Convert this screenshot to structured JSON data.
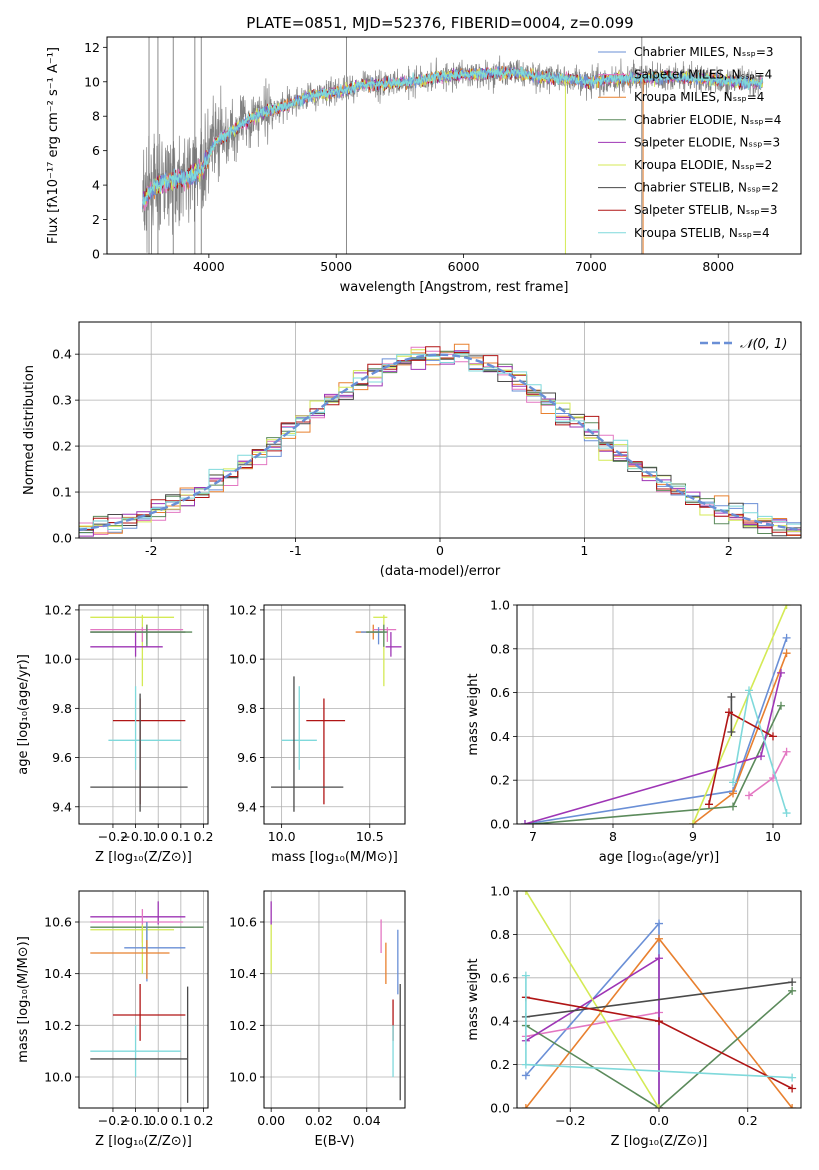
{
  "colors": {
    "Chabrier MILES": "#6a8fd6",
    "Salpeter MILES": "#e377c2",
    "Kroupa MILES": "#e8802f",
    "Chabrier ELODIE": "#5b8a5b",
    "Salpeter ELODIE": "#9e35b5",
    "Kroupa ELODIE": "#d4ea55",
    "Chabrier STELIB": "#4a4a4a",
    "Salpeter STELIB": "#b01515",
    "Kroupa STELIB": "#7fd9db",
    "normal_curve": "#6a8fd6"
  },
  "chart_data": [
    {
      "id": "spectrum",
      "type": "line",
      "title": "PLATE=0851, MJD=52376, FIBERID=0004, z=0.099",
      "xlabel": "wavelength [Angstrom, rest frame]",
      "ylabel": "Flux [fλ10⁻¹⁷ erg cm⁻² s⁻¹ A⁻¹]",
      "xlim": [
        3200,
        8650
      ],
      "ylim": [
        0,
        12.6
      ],
      "xticks": [
        4000,
        5000,
        6000,
        7000,
        8000
      ],
      "yticks": [
        0,
        2,
        4,
        6,
        8,
        10,
        12
      ],
      "legend_position": "top-right",
      "data_color": "#808080",
      "continuum": {
        "x": [
          3480,
          3560,
          3650,
          3750,
          3850,
          3950,
          4050,
          4150,
          4250,
          4400,
          4600,
          4800,
          5000,
          5200,
          5400,
          5600,
          5800,
          6000,
          6200,
          6400,
          6600,
          6800,
          7000,
          7200,
          7400,
          7600,
          7800,
          8000,
          8200,
          8350
        ],
        "y": [
          3.0,
          3.8,
          4.2,
          4.3,
          4.5,
          5.0,
          6.5,
          7.0,
          7.5,
          8.2,
          8.6,
          9.2,
          9.4,
          9.8,
          9.9,
          10.0,
          10.3,
          10.4,
          10.5,
          10.5,
          10.3,
          10.2,
          10.0,
          10.2,
          10.2,
          10.3,
          10.2,
          10.1,
          10.0,
          9.9
        ]
      },
      "legend": [
        "Chabrier MILES, Nₛₛₚ=3",
        "Salpeter MILES, Nₛₛₚ=4",
        "Kroupa MILES, Nₛₛₚ=4",
        "Chabrier ELODIE, Nₛₛₚ=4",
        "Salpeter ELODIE, Nₛₛₚ=3",
        "Kroupa ELODIE, Nₛₛₚ=2",
        "Chabrier STELIB, Nₛₛₚ=2",
        "Salpeter STELIB, Nₛₛₚ=3",
        "Kroupa STELIB, Nₛₛₚ=4"
      ]
    },
    {
      "id": "residual_hist",
      "type": "histogram",
      "xlabel": "(data-model)/error",
      "ylabel": "Normed distribution",
      "xlim": [
        -2.5,
        2.5
      ],
      "ylim": [
        0,
        0.47
      ],
      "xticks": [
        -2,
        -1,
        0,
        1,
        2
      ],
      "yticks": [
        0.0,
        0.1,
        0.2,
        0.3,
        0.4
      ],
      "grid": true,
      "legend": [
        "𝒩(0, 1)"
      ],
      "legend_position": "top-right",
      "bin_width": 0.1
    },
    {
      "id": "z_age",
      "type": "scatter",
      "xlabel": "Z [log₁₀(Z/Z⊙)]",
      "ylabel": "age  [log₁₀(age/yr)]",
      "xlim": [
        -0.35,
        0.22
      ],
      "ylim": [
        9.33,
        10.22
      ],
      "xticks": [
        -0.2,
        -0.1,
        0.0,
        0.1,
        0.2
      ],
      "xtick_labels": [
        "−0.2",
        "−0.1",
        "0.0",
        "0.1",
        "0.2"
      ],
      "yticks": [
        9.4,
        9.6,
        9.8,
        10.0,
        10.2
      ],
      "grid": true,
      "points": [
        {
          "series": "Kroupa ELODIE",
          "x": -0.07,
          "xerr": [
            0.23,
            0.14
          ],
          "y": 10.17,
          "yerr": [
            0.28,
            0.01
          ]
        },
        {
          "series": "Kroupa MILES",
          "x": -0.05,
          "xerr": [
            0.25,
            0.17
          ],
          "y": 10.11,
          "yerr": [
            0.03,
            0.03
          ]
        },
        {
          "series": "Salpeter MILES",
          "x": -0.07,
          "xerr": [
            0.23,
            0.18
          ],
          "y": 10.12,
          "yerr": [
            0.05,
            0.01
          ]
        },
        {
          "series": "Chabrier MILES",
          "x": -0.05,
          "xerr": [
            0.25,
            0.17
          ],
          "y": 10.11,
          "yerr": [
            0.05,
            0.02
          ]
        },
        {
          "series": "Chabrier ELODIE",
          "x": -0.05,
          "xerr": [
            0.25,
            0.2
          ],
          "y": 10.11,
          "yerr": [
            0.06,
            0.03
          ]
        },
        {
          "series": "Salpeter ELODIE",
          "x": -0.1,
          "xerr": [
            0.2,
            0.12
          ],
          "y": 10.05,
          "yerr": [
            0.04,
            0.06
          ]
        },
        {
          "series": "Salpeter STELIB",
          "x": -0.08,
          "xerr": [
            0.12,
            0.2
          ],
          "y": 9.75,
          "yerr": [
            0.34,
            0.09
          ]
        },
        {
          "series": "Kroupa STELIB",
          "x": -0.1,
          "xerr": [
            0.12,
            0.2
          ],
          "y": 9.67,
          "yerr": [
            0.12,
            0.22
          ]
        },
        {
          "series": "Chabrier STELIB",
          "x": -0.08,
          "xerr": [
            0.22,
            0.21
          ],
          "y": 9.48,
          "yerr": [
            0.1,
            0.38
          ]
        }
      ]
    },
    {
      "id": "mass_age",
      "type": "scatter",
      "xlabel": "mass [log₁₀(M/M⊙)]",
      "ylabel": "",
      "xlim": [
        9.9,
        10.7
      ],
      "ylim": [
        9.33,
        10.22
      ],
      "xticks": [
        10.0,
        10.5
      ],
      "xtick_labels": [
        "10.0",
        "10.5"
      ],
      "yticks": [
        9.4,
        9.6,
        9.8,
        10.0,
        10.2
      ],
      "grid": true,
      "points": [
        {
          "series": "Kroupa ELODIE",
          "x": 10.58,
          "xerr": [
            0.06,
            0.02
          ],
          "y": 10.17,
          "yerr": [
            0.28,
            0.01
          ]
        },
        {
          "series": "Kroupa MILES",
          "x": 10.52,
          "xerr": [
            0.1,
            0.05
          ],
          "y": 10.11,
          "yerr": [
            0.03,
            0.03
          ]
        },
        {
          "series": "Salpeter MILES",
          "x": 10.6,
          "xerr": [
            0.08,
            0.05
          ],
          "y": 10.12,
          "yerr": [
            0.05,
            0.01
          ]
        },
        {
          "series": "Chabrier MILES",
          "x": 10.55,
          "xerr": [
            0.1,
            0.04
          ],
          "y": 10.11,
          "yerr": [
            0.05,
            0.02
          ]
        },
        {
          "series": "Chabrier ELODIE",
          "x": 10.58,
          "xerr": [
            0.1,
            0.02
          ],
          "y": 10.11,
          "yerr": [
            0.06,
            0.03
          ]
        },
        {
          "series": "Salpeter ELODIE",
          "x": 10.62,
          "xerr": [
            0.03,
            0.06
          ],
          "y": 10.05,
          "yerr": [
            0.04,
            0.06
          ]
        },
        {
          "series": "Salpeter STELIB",
          "x": 10.24,
          "xerr": [
            0.1,
            0.12
          ],
          "y": 9.75,
          "yerr": [
            0.34,
            0.09
          ]
        },
        {
          "series": "Kroupa STELIB",
          "x": 10.1,
          "xerr": [
            0.1,
            0.1
          ],
          "y": 9.67,
          "yerr": [
            0.12,
            0.22
          ]
        },
        {
          "series": "Chabrier STELIB",
          "x": 10.07,
          "xerr": [
            0.13,
            0.28
          ],
          "y": 9.48,
          "yerr": [
            0.1,
            0.45
          ]
        }
      ]
    },
    {
      "id": "age_weight",
      "type": "line",
      "xlabel": "age  [log₁₀(age/yr)]",
      "ylabel": "mass weight",
      "xlim": [
        6.8,
        10.35
      ],
      "ylim": [
        0,
        1
      ],
      "xticks": [
        7,
        8,
        9,
        10
      ],
      "yticks": [
        0.0,
        0.2,
        0.4,
        0.6,
        0.8,
        1.0
      ],
      "grid": true,
      "series": [
        {
          "name": "Chabrier MILES",
          "x": [
            6.9,
            9.5,
            10.17
          ],
          "y": [
            0.0,
            0.15,
            0.85
          ]
        },
        {
          "name": "Salpeter MILES",
          "x": [
            9.7,
            10.0,
            10.17
          ],
          "y": [
            0.13,
            0.21,
            0.33
          ]
        },
        {
          "name": "Kroupa MILES",
          "x": [
            9.0,
            9.5,
            10.17
          ],
          "y": [
            0.0,
            0.14,
            0.78
          ]
        },
        {
          "name": "Chabrier ELODIE",
          "x": [
            7.0,
            9.5,
            10.1
          ],
          "y": [
            0.0,
            0.08,
            0.54
          ]
        },
        {
          "name": "Salpeter ELODIE",
          "x": [
            6.9,
            9.85,
            10.1
          ],
          "y": [
            0.0,
            0.31,
            0.69
          ]
        },
        {
          "name": "Kroupa ELODIE",
          "x": [
            9.0,
            10.17
          ],
          "y": [
            0.0,
            1.0
          ]
        },
        {
          "name": "Chabrier STELIB",
          "x": [
            9.48,
            9.48
          ],
          "y": [
            0.42,
            0.58
          ]
        },
        {
          "name": "Salpeter STELIB",
          "x": [
            9.2,
            9.45,
            10.0
          ],
          "y": [
            0.09,
            0.51,
            0.4
          ]
        },
        {
          "name": "Kroupa STELIB",
          "x": [
            9.5,
            9.7,
            10.17
          ],
          "y": [
            0.19,
            0.61,
            0.05
          ]
        }
      ]
    },
    {
      "id": "z_mass",
      "type": "scatter",
      "xlabel": "Z [log₁₀(Z/Z⊙)]",
      "ylabel": "mass [log₁₀(M/M⊙)]",
      "xlim": [
        -0.35,
        0.22
      ],
      "ylim": [
        9.88,
        10.72
      ],
      "xticks": [
        -0.2,
        -0.1,
        0.0,
        0.1,
        0.2
      ],
      "xtick_labels": [
        "−0.2",
        "−0.1",
        "0.0",
        "0.1",
        "0.2"
      ],
      "yticks": [
        10.0,
        10.2,
        10.4,
        10.6
      ],
      "grid": true,
      "points": [
        {
          "series": "Salpeter ELODIE",
          "x": 0.0,
          "xerr": [
            0.3,
            0.12
          ],
          "y": 10.62,
          "yerr": [
            0.03,
            0.06
          ]
        },
        {
          "series": "Salpeter MILES",
          "x": -0.07,
          "xerr": [
            0.23,
            0.18
          ],
          "y": 10.6,
          "yerr": [
            0.08,
            0.05
          ]
        },
        {
          "series": "Chabrier ELODIE",
          "x": -0.05,
          "xerr": [
            0.25,
            0.25
          ],
          "y": 10.58,
          "yerr": [
            0.1,
            0.02
          ]
        },
        {
          "series": "Kroupa ELODIE",
          "x": -0.07,
          "xerr": [
            0.23,
            0.14
          ],
          "y": 10.57,
          "yerr": [
            0.17,
            0.02
          ]
        },
        {
          "series": "Chabrier MILES",
          "x": -0.05,
          "xerr": [
            0.1,
            0.17
          ],
          "y": 10.5,
          "yerr": [
            0.13,
            0.1
          ]
        },
        {
          "series": "Kroupa MILES",
          "x": -0.05,
          "xerr": [
            0.25,
            0.1
          ],
          "y": 10.48,
          "yerr": [
            0.1,
            0.05
          ]
        },
        {
          "series": "Salpeter STELIB",
          "x": -0.08,
          "xerr": [
            0.12,
            0.2
          ],
          "y": 10.24,
          "yerr": [
            0.1,
            0.12
          ]
        },
        {
          "series": "Kroupa STELIB",
          "x": -0.1,
          "xerr": [
            0.2,
            0.2
          ],
          "y": 10.1,
          "yerr": [
            0.1,
            0.1
          ]
        },
        {
          "series": "Chabrier STELIB",
          "x": 0.13,
          "xerr": [
            0.43,
            0.0
          ],
          "y": 10.07,
          "yerr": [
            0.17,
            0.28
          ]
        }
      ]
    },
    {
      "id": "ebv_mass",
      "type": "scatter",
      "xlabel": "E(B-V)",
      "ylabel": "",
      "xlim": [
        -0.003,
        0.056
      ],
      "ylim": [
        9.88,
        10.72
      ],
      "xticks": [
        0.0,
        0.02,
        0.04
      ],
      "xtick_labels": [
        "0.00",
        "0.02",
        "0.04"
      ],
      "yticks": [
        10.0,
        10.2,
        10.4,
        10.6
      ],
      "grid": true,
      "points": [
        {
          "series": "Salpeter ELODIE",
          "x": 0.0,
          "y": 10.62,
          "yerr": [
            0.03,
            0.06
          ]
        },
        {
          "series": "Kroupa ELODIE",
          "x": 0.0,
          "y": 10.57,
          "yerr": [
            0.17,
            0.02
          ]
        },
        {
          "series": "Salpeter MILES",
          "x": 0.046,
          "y": 10.56,
          "yerr": [
            0.08,
            0.05
          ]
        },
        {
          "series": "Kroupa MILES",
          "x": 0.048,
          "y": 10.47,
          "yerr": [
            0.11,
            0.05
          ]
        },
        {
          "series": "Chabrier MILES",
          "x": 0.053,
          "y": 10.45,
          "yerr": [
            0.13,
            0.12
          ]
        },
        {
          "series": "Salpeter STELIB",
          "x": 0.051,
          "y": 10.24,
          "yerr": [
            0.1,
            0.06
          ]
        },
        {
          "series": "Kroupa STELIB",
          "x": 0.051,
          "y": 10.1,
          "yerr": [
            0.1,
            0.1
          ]
        },
        {
          "series": "Chabrier STELIB",
          "x": 0.054,
          "y": 10.1,
          "yerr": [
            0.19,
            0.26
          ]
        }
      ]
    },
    {
      "id": "z_weight",
      "type": "line",
      "xlabel": "Z [log₁₀(Z/Z⊙)]",
      "ylabel": "mass weight",
      "xlim": [
        -0.32,
        0.32
      ],
      "ylim": [
        0,
        1
      ],
      "xticks": [
        -0.2,
        0.0,
        0.2
      ],
      "xtick_labels": [
        "−0.2",
        "0.0",
        "0.2"
      ],
      "yticks": [
        0.0,
        0.2,
        0.4,
        0.6,
        0.8,
        1.0
      ],
      "grid": true,
      "series": [
        {
          "name": "Chabrier MILES",
          "x": [
            -0.3,
            0.0,
            0.0
          ],
          "y": [
            0.15,
            0.85,
            0.0
          ]
        },
        {
          "name": "Salpeter MILES",
          "x": [
            -0.3,
            0.0
          ],
          "y": [
            0.33,
            0.44
          ]
        },
        {
          "name": "Kroupa MILES",
          "x": [
            -0.3,
            0.0,
            0.3
          ],
          "y": [
            0.0,
            0.78,
            0.0
          ]
        },
        {
          "name": "Chabrier ELODIE",
          "x": [
            -0.3,
            0.0,
            0.3
          ],
          "y": [
            0.38,
            0.0,
            0.54
          ]
        },
        {
          "name": "Salpeter ELODIE",
          "x": [
            -0.3,
            0.0,
            0.0
          ],
          "y": [
            0.31,
            0.69,
            0.0
          ]
        },
        {
          "name": "Kroupa ELODIE",
          "x": [
            -0.3,
            0.0
          ],
          "y": [
            1.0,
            0.0
          ]
        },
        {
          "name": "Chabrier STELIB",
          "x": [
            -0.3,
            0.3
          ],
          "y": [
            0.42,
            0.58
          ]
        },
        {
          "name": "Salpeter STELIB",
          "x": [
            -0.3,
            0.0,
            0.3
          ],
          "y": [
            0.51,
            0.4,
            0.09
          ]
        },
        {
          "name": "Kroupa STELIB",
          "x": [
            -0.3,
            -0.3,
            0.3
          ],
          "y": [
            0.61,
            0.2,
            0.14
          ]
        }
      ]
    }
  ]
}
